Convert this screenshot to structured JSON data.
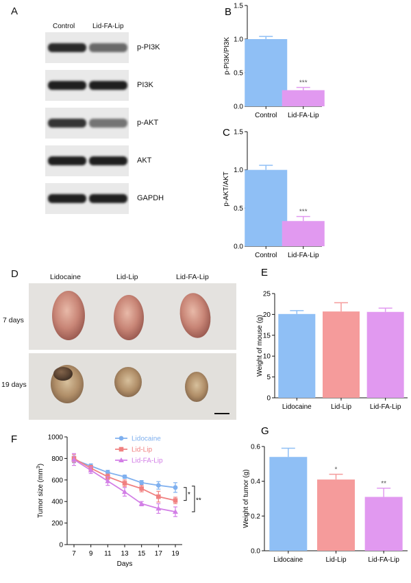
{
  "panels": {
    "A": {
      "letter": "A",
      "columns": [
        "Control",
        "Lid-FA-Lip"
      ],
      "blots": [
        "p-PI3K",
        "PI3K",
        "p-AKT",
        "AKT",
        "GAPDH"
      ]
    },
    "D": {
      "letter": "D",
      "columns": [
        "Lidocaine",
        "Lid-Lip",
        "Lid-FA-Lip"
      ],
      "rows": [
        "7 days",
        "19 days"
      ]
    }
  },
  "colors": {
    "blue": "#8fbff5",
    "blue_line": "#7fb0ef",
    "salmon": "#f59b9b",
    "pink": "#f08080",
    "violet": "#e199f0",
    "violet_line": "#d27ee6",
    "bar_stroke": "#6f9fe0"
  },
  "chart_data": [
    {
      "id": "B",
      "letter": "B",
      "type": "bar",
      "categories": [
        "Control",
        "Lid-FA-Lip"
      ],
      "values": [
        1.0,
        0.24
      ],
      "errors": [
        0.04,
        0.04
      ],
      "annotations": [
        "",
        "***"
      ],
      "ylabel": "p-PI3K/PI3K",
      "xlabel": "",
      "ylim": [
        0,
        1.5
      ],
      "yticks": [
        "0.0",
        "0.5",
        "1.0",
        "1.5"
      ],
      "colors": [
        "blue",
        "violet"
      ]
    },
    {
      "id": "C",
      "letter": "C",
      "type": "bar",
      "categories": [
        "Control",
        "Lid-FA-Lip"
      ],
      "values": [
        1.0,
        0.33
      ],
      "errors": [
        0.06,
        0.06
      ],
      "annotations": [
        "",
        "***"
      ],
      "ylabel": "p-AKT/AKT",
      "xlabel": "",
      "ylim": [
        0,
        1.5
      ],
      "yticks": [
        "0.0",
        "0.5",
        "1.0",
        "1.5"
      ],
      "colors": [
        "blue",
        "violet"
      ]
    },
    {
      "id": "E",
      "letter": "E",
      "type": "bar",
      "categories": [
        "Lidocaine",
        "Lid-Lip",
        "Lid-FA-Lip"
      ],
      "values": [
        20.1,
        20.7,
        20.6
      ],
      "errors": [
        0.8,
        2.1,
        0.9
      ],
      "annotations": [
        "",
        "",
        ""
      ],
      "ylabel": "Weight of mouse (g)",
      "xlabel": "",
      "ylim": [
        0,
        25
      ],
      "yticks": [
        "0",
        "5",
        "10",
        "15",
        "20",
        "25"
      ],
      "colors": [
        "blue",
        "salmon",
        "violet"
      ]
    },
    {
      "id": "F",
      "letter": "F",
      "type": "line",
      "x": [
        7,
        9,
        11,
        13,
        15,
        17,
        19
      ],
      "xticks": [
        "7",
        "9",
        "11",
        "13",
        "15",
        "17",
        "19"
      ],
      "xlabel": "Days",
      "ylabel_main": "Tumor size (mm",
      "ylabel_sup": "3",
      "ylabel_end": ")",
      "ylim": [
        0,
        1000
      ],
      "yticks": [
        "0",
        "200",
        "400",
        "600",
        "800",
        "1000"
      ],
      "series": [
        {
          "name": "Lidocaine",
          "values": [
            790,
            730,
            670,
            630,
            575,
            550,
            530
          ],
          "errors": [
            30,
            20,
            20,
            15,
            20,
            35,
            45
          ],
          "color": "blue_line",
          "marker": "circle"
        },
        {
          "name": "Lid-Lip",
          "values": [
            800,
            710,
            630,
            570,
            520,
            445,
            410
          ],
          "errors": [
            35,
            25,
            25,
            30,
            30,
            50,
            30
          ],
          "color": "pink",
          "marker": "square"
        },
        {
          "name": "Lid-FA-Lip",
          "values": [
            790,
            690,
            590,
            490,
            380,
            335,
            305
          ],
          "errors": [
            55,
            30,
            40,
            40,
            20,
            45,
            45
          ],
          "color": "violet_line",
          "marker": "triangle"
        }
      ],
      "significance": [
        "*",
        "**"
      ]
    },
    {
      "id": "G",
      "letter": "G",
      "type": "bar",
      "categories": [
        "Lidocaine",
        "Lid-Lip",
        "Lid-FA-Lip"
      ],
      "values": [
        0.54,
        0.41,
        0.31
      ],
      "errors": [
        0.05,
        0.03,
        0.05
      ],
      "annotations": [
        "",
        "*",
        "**"
      ],
      "ylabel": "Weight of tumor (g)",
      "xlabel": "",
      "ylim": [
        0,
        0.6
      ],
      "yticks": [
        "0.0",
        "0.2",
        "0.4",
        "0.6"
      ],
      "colors": [
        "blue",
        "salmon",
        "violet"
      ]
    }
  ]
}
